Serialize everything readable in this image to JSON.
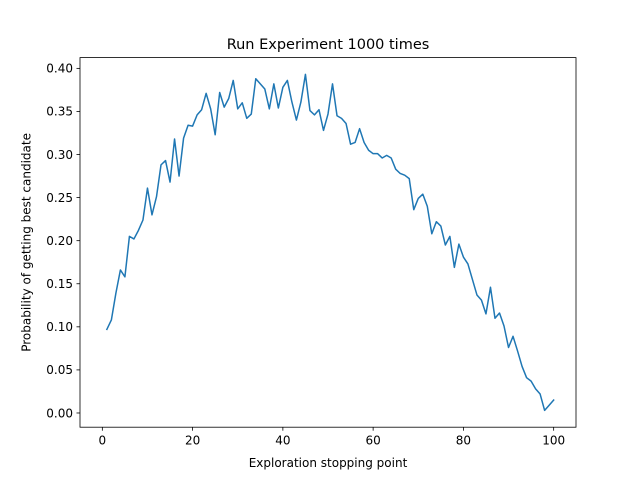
{
  "chart_data": {
    "type": "line",
    "title": "Run Experiment 1000 times",
    "xlabel": "Exploration stopping point",
    "ylabel": "Probability of getting best candidate",
    "xlim": [
      -4.95,
      104.95
    ],
    "ylim": [
      -0.0165,
      0.4125
    ],
    "xticks": [
      0,
      20,
      40,
      60,
      80,
      100
    ],
    "yticks": [
      0.0,
      0.05,
      0.1,
      0.15,
      0.2,
      0.25,
      0.3,
      0.35,
      0.4
    ],
    "xtick_labels": [
      "0",
      "20",
      "40",
      "60",
      "80",
      "100"
    ],
    "ytick_labels": [
      "0.00",
      "0.05",
      "0.10",
      "0.15",
      "0.20",
      "0.25",
      "0.30",
      "0.35",
      "0.40"
    ],
    "grid": false,
    "legend": null,
    "series": [
      {
        "color": "#1f77b4",
        "x": [
          1,
          2,
          3,
          4,
          5,
          6,
          7,
          8,
          9,
          10,
          11,
          12,
          13,
          14,
          15,
          16,
          17,
          18,
          19,
          20,
          21,
          22,
          23,
          24,
          25,
          26,
          27,
          28,
          29,
          30,
          31,
          32,
          33,
          34,
          35,
          36,
          37,
          38,
          39,
          40,
          41,
          42,
          43,
          44,
          45,
          46,
          47,
          48,
          49,
          50,
          51,
          52,
          53,
          54,
          55,
          56,
          57,
          58,
          59,
          60,
          61,
          62,
          63,
          64,
          65,
          66,
          67,
          68,
          69,
          70,
          71,
          72,
          73,
          74,
          75,
          76,
          77,
          78,
          79,
          80,
          81,
          82,
          83,
          84,
          85,
          86,
          87,
          88,
          89,
          90,
          91,
          92,
          93,
          94,
          95,
          96,
          97,
          98,
          99,
          100
        ],
        "y": [
          0.097,
          0.108,
          0.139,
          0.166,
          0.158,
          0.205,
          0.202,
          0.212,
          0.224,
          0.261,
          0.23,
          0.251,
          0.288,
          0.293,
          0.268,
          0.318,
          0.275,
          0.319,
          0.334,
          0.333,
          0.346,
          0.352,
          0.371,
          0.353,
          0.323,
          0.372,
          0.355,
          0.365,
          0.386,
          0.353,
          0.36,
          0.342,
          0.347,
          0.388,
          0.382,
          0.376,
          0.353,
          0.382,
          0.354,
          0.378,
          0.386,
          0.361,
          0.34,
          0.361,
          0.393,
          0.351,
          0.346,
          0.352,
          0.328,
          0.347,
          0.382,
          0.345,
          0.342,
          0.336,
          0.312,
          0.314,
          0.33,
          0.314,
          0.305,
          0.301,
          0.301,
          0.296,
          0.299,
          0.296,
          0.283,
          0.278,
          0.276,
          0.272,
          0.236,
          0.249,
          0.254,
          0.24,
          0.208,
          0.222,
          0.217,
          0.195,
          0.205,
          0.169,
          0.196,
          0.181,
          0.173,
          0.155,
          0.137,
          0.131,
          0.115,
          0.146,
          0.11,
          0.116,
          0.101,
          0.076,
          0.089,
          0.072,
          0.054,
          0.041,
          0.037,
          0.028,
          0.022,
          0.003,
          0.009,
          0.015
        ]
      }
    ]
  }
}
